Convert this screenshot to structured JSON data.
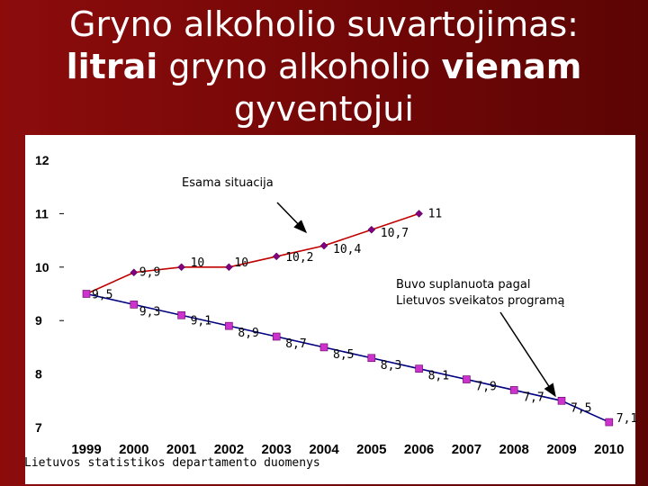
{
  "title": {
    "line1": "Gryno alkoholio suvartojimas:",
    "line2_b1": "litrai",
    "line2_mid": " gryno alkoholio ",
    "line2_b2": "vienam",
    "line3": "gyventojui"
  },
  "source": "Lietuvos statistikos departamento duomenys",
  "colors": {
    "background": "#7a0808",
    "actual_line": "#c00000",
    "actual_marker": "#800080",
    "planned_line": "#000080",
    "planned_marker": "#cc33cc"
  },
  "chart_data": {
    "type": "line",
    "title": "",
    "xlabel": "",
    "ylabel": "",
    "ylim": [
      7,
      12
    ],
    "yticks": [
      "7",
      "8",
      "9",
      "10",
      "11",
      "12"
    ],
    "categories": [
      "1999",
      "2000",
      "2001",
      "2002",
      "2003",
      "2004",
      "2005",
      "2006",
      "2007",
      "2008",
      "2009",
      "2010"
    ],
    "series": [
      {
        "key": "actual",
        "x": [
          "1999",
          "2000",
          "2001",
          "2002",
          "2003",
          "2004",
          "2005",
          "2006"
        ],
        "values": [
          9.5,
          9.9,
          10,
          10,
          10.2,
          10.4,
          10.7,
          11
        ],
        "labels": [
          "",
          "9,9",
          "10",
          "10",
          "10,2",
          "10,4",
          "10,7",
          "11"
        ]
      },
      {
        "key": "planned",
        "x": [
          "1999",
          "2000",
          "2001",
          "2002",
          "2003",
          "2004",
          "2005",
          "2006",
          "2007",
          "2008",
          "2009",
          "2010"
        ],
        "values": [
          9.5,
          9.3,
          9.1,
          8.9,
          8.7,
          8.5,
          8.3,
          8.1,
          7.9,
          7.7,
          7.5,
          7.1
        ],
        "labels": [
          "9,5",
          "9,3",
          "9,1",
          "8,9",
          "8,7",
          "8,5",
          "8,3",
          "8,1",
          "7,9",
          "7,7",
          "7,5",
          "7,1"
        ]
      }
    ],
    "annotations": [
      {
        "text": "Esama situacija",
        "target": "actual"
      },
      {
        "text_lines": [
          "Buvo suplanuota pagal",
          "Lietuvos sveikatos programą"
        ],
        "target": "planned"
      }
    ]
  }
}
